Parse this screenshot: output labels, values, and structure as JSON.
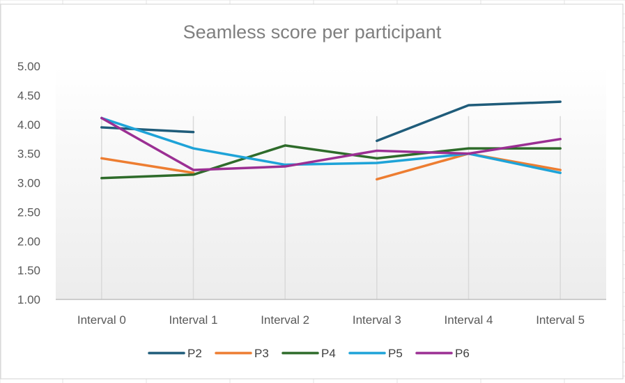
{
  "chart_data": {
    "type": "line",
    "title": "Seamless score per participant",
    "xlabel": "",
    "ylabel": "",
    "categories": [
      "Interval 0",
      "Interval 1",
      "Interval 2",
      "Interval 3",
      "Interval 4",
      "Interval 5"
    ],
    "ylim": [
      1.0,
      5.0
    ],
    "yticks": [
      "1.00",
      "1.50",
      "2.00",
      "2.50",
      "3.00",
      "3.50",
      "4.00",
      "4.50",
      "5.00"
    ],
    "ytick_values": [
      1.0,
      1.5,
      2.0,
      2.5,
      3.0,
      3.5,
      4.0,
      4.5,
      5.0
    ],
    "grid": "vertical",
    "legend_position": "bottom",
    "series": [
      {
        "name": "P2",
        "color": "#1f5c7a",
        "values": [
          3.95,
          3.87,
          null,
          3.72,
          4.33,
          4.39
        ]
      },
      {
        "name": "P3",
        "color": "#ed7d31",
        "values": [
          3.42,
          3.17,
          null,
          3.06,
          3.5,
          3.22
        ]
      },
      {
        "name": "P4",
        "color": "#2e6b2a",
        "values": [
          3.08,
          3.14,
          3.64,
          3.42,
          3.59,
          3.59
        ]
      },
      {
        "name": "P5",
        "color": "#1ea3d8",
        "values": [
          4.11,
          3.59,
          3.31,
          3.34,
          3.5,
          3.17
        ]
      },
      {
        "name": "P6",
        "color": "#9b2f93",
        "values": [
          4.11,
          3.22,
          3.28,
          3.55,
          3.5,
          3.75
        ]
      }
    ]
  }
}
